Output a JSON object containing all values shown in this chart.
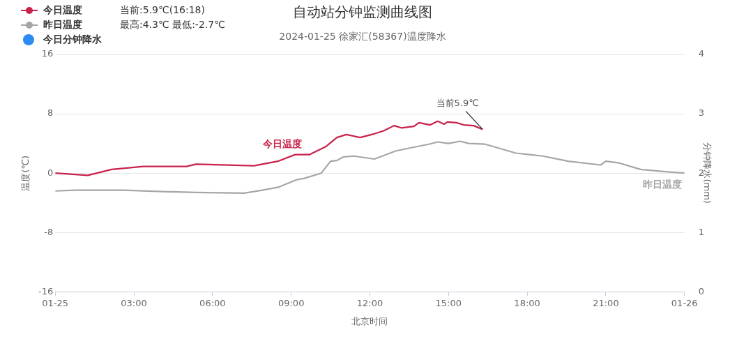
{
  "chart_data": {
    "type": "line",
    "title": "自动站分钟监测曲线图",
    "subtitle": "2024-01-25 徐家汇(58367)温度降水",
    "xlabel": "北京时间",
    "ylabel": "温度(℃)",
    "y2label": "分钟降水(mm)",
    "xlim": [
      0,
      24
    ],
    "xticks": [
      {
        "value": 0,
        "label": "01-25"
      },
      {
        "value": 3,
        "label": "03:00"
      },
      {
        "value": 6,
        "label": "06:00"
      },
      {
        "value": 9,
        "label": "09:00"
      },
      {
        "value": 12,
        "label": "12:00"
      },
      {
        "value": 15,
        "label": "15:00"
      },
      {
        "value": 18,
        "label": "18:00"
      },
      {
        "value": 21,
        "label": "21:00"
      },
      {
        "value": 24,
        "label": "01-26"
      }
    ],
    "ylim": [
      -16,
      16
    ],
    "yticks": [
      -16,
      -8,
      0,
      8,
      16
    ],
    "y2lim": [
      0,
      4
    ],
    "y2ticks": [
      0,
      1,
      2,
      3,
      4
    ],
    "grid": "y",
    "legend": "top left",
    "marker": "none",
    "line_style": "solid",
    "annotations": [
      "当前:5.9℃(16:18)",
      "最高:4.3℃ 最低:-2.7℃",
      {
        "text": "当前5.9℃",
        "x": 16.3,
        "y": 5.9
      }
    ],
    "series": [
      {
        "name": "今日温度",
        "color": "#c8234a",
        "x": [
          0,
          1.24,
          2.15,
          3.36,
          5.0,
          5.37,
          7.58,
          8.49,
          9.15,
          9.5,
          9.7,
          10.33,
          10.74,
          10.83,
          11.1,
          11.63,
          12.17,
          12.53,
          12.92,
          13.2,
          13.68,
          13.87,
          14.3,
          14.59,
          14.83,
          14.96,
          15.3,
          15.58,
          15.96,
          16.3
        ],
        "values": [
          0,
          -0.3,
          0.5,
          0.9,
          0.9,
          1.2,
          1.0,
          1.6,
          2.5,
          2.5,
          2.5,
          3.6,
          4.8,
          4.9,
          5.2,
          4.8,
          5.3,
          5.7,
          6.4,
          6.1,
          6.3,
          6.8,
          6.5,
          7.0,
          6.6,
          6.9,
          6.8,
          6.5,
          6.4,
          5.9
        ]
      },
      {
        "name": "昨日温度",
        "color": "#a6a6a6",
        "x": [
          0,
          0.78,
          2.6,
          4.27,
          5.37,
          7.2,
          7.9,
          8.5,
          9.2,
          9.5,
          10.15,
          10.5,
          10.74,
          11.0,
          11.4,
          12.17,
          13.0,
          13.68,
          14.25,
          14.59,
          15.0,
          15.44,
          15.77,
          16.4,
          17.57,
          18.6,
          19.57,
          20.8,
          21.0,
          21.47,
          22.33,
          23.28,
          24
        ],
        "values": [
          -2.4,
          -2.3,
          -2.3,
          -2.5,
          -2.6,
          -2.7,
          -2.3,
          -1.9,
          -0.9,
          -0.7,
          0,
          1.6,
          1.7,
          2.2,
          2.3,
          1.9,
          3.0,
          3.5,
          3.9,
          4.2,
          4.0,
          4.3,
          4.0,
          3.9,
          2.7,
          2.3,
          1.6,
          1.1,
          1.6,
          1.4,
          0.5,
          0.2,
          0
        ]
      },
      {
        "name": "今日分钟降水",
        "color": "#2a8cf0",
        "type": "scatter",
        "axis": "y2"
      }
    ]
  }
}
